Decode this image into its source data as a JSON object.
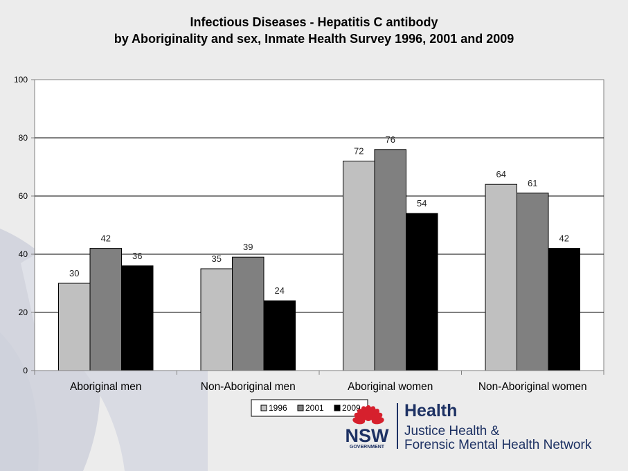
{
  "title_lines": [
    "Infectious Diseases -  Hepatitis C antibody",
    "by Aboriginality and sex, Inmate Health Survey 1996, 2001 and 2009"
  ],
  "chart_data": {
    "type": "bar",
    "categories": [
      "Aboriginal men",
      "Non-Aboriginal men",
      "Aboriginal women",
      "Non-Aboriginal women"
    ],
    "series": [
      {
        "name": "1996",
        "values": [
          30,
          35,
          72,
          64
        ],
        "color": "#c0c0c0"
      },
      {
        "name": "2001",
        "values": [
          42,
          39,
          76,
          61
        ],
        "color": "#808080"
      },
      {
        "name": "2009",
        "values": [
          36,
          24,
          54,
          42
        ],
        "color": "#000000"
      }
    ],
    "ylim": [
      0,
      100
    ],
    "yticks": [
      0,
      20,
      40,
      60,
      80,
      100
    ],
    "grid": true,
    "legend_position": "bottom",
    "data_labels": true
  },
  "logo": {
    "wordmark": "NSW",
    "sub": "GOVERNMENT",
    "health": "Health",
    "network_lines": [
      "Justice Health &",
      "Forensic Mental Health Network"
    ],
    "brand_color": "#1d3163",
    "accent_color": "#d6202d"
  }
}
